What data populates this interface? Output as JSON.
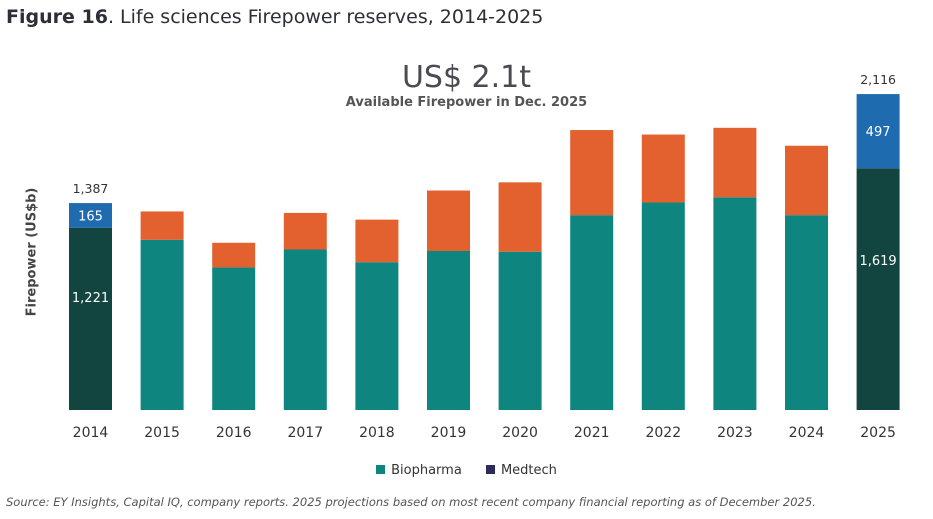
{
  "figure": {
    "label": "Figure 16",
    "title_rest": ". Life sciences Firepower reserves, 2014-2025"
  },
  "headline": {
    "value": "US$ 2.1t",
    "subtitle": "Available Firepower in Dec. 2025"
  },
  "source": "Source: EY Insights, Capital IQ, company reports. 2025 projections based on most recent company financial reporting as of December 2025.",
  "colors": {
    "biopharma": "#0f8580",
    "biopharma_dark": "#124440",
    "medtech": "#e3612f",
    "medtech_dark": "#1e6bb0",
    "legend_medtech": "#2d2a5e"
  },
  "chart_data": {
    "type": "bar",
    "stacked": true,
    "ylabel": "Firepower (US$b)",
    "ylim": [
      0,
      2200
    ],
    "categories": [
      "2014",
      "2015",
      "2016",
      "2017",
      "2018",
      "2019",
      "2020",
      "2021",
      "2022",
      "2023",
      "2024",
      "2025"
    ],
    "series": [
      {
        "name": "Biopharma",
        "values": [
          1221,
          1140,
          955,
          1075,
          990,
          1065,
          1060,
          1305,
          1390,
          1425,
          1305,
          1619
        ]
      },
      {
        "name": "Medtech",
        "values": [
          165,
          190,
          165,
          245,
          285,
          405,
          465,
          570,
          455,
          465,
          465,
          497
        ]
      }
    ],
    "highlighted": [
      "2014",
      "2025"
    ],
    "data_labels": [
      {
        "category": "2014",
        "total": "1,387",
        "medtech": "165",
        "biopharma": "1,221"
      },
      {
        "category": "2025",
        "total": "2,116",
        "medtech": "497",
        "biopharma": "1,619"
      }
    ],
    "legend": [
      "Biopharma",
      "Medtech"
    ]
  }
}
